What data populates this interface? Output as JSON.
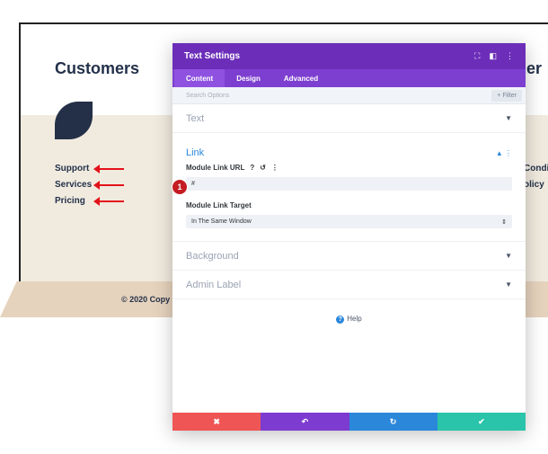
{
  "background_page": {
    "heading_left": "Customers",
    "heading_right": "er",
    "nav_links": [
      "Support",
      "Services",
      "Pricing"
    ],
    "right_links": [
      "Condit",
      "olicy"
    ],
    "copyright": "© 2020 Copy"
  },
  "modal": {
    "title": "Text Settings",
    "header_icons": [
      "expand-icon",
      "split-view-icon",
      "more-icon"
    ],
    "tabs": [
      {
        "label": "Content",
        "active": true
      },
      {
        "label": "Design",
        "active": false
      },
      {
        "label": "Advanced",
        "active": false
      }
    ],
    "search_placeholder": "Search Options",
    "filter_label": "+ Filter",
    "sections": {
      "text": "Text",
      "link": "Link",
      "background": "Background",
      "admin_label": "Admin Label"
    },
    "link": {
      "url_label": "Module Link URL",
      "url_value": "#",
      "target_label": "Module Link Target",
      "target_value": "In The Same Window"
    },
    "badge_number": "1",
    "help_label": "Help"
  },
  "colors": {
    "header_purple": "#6c2eb9",
    "tab_purple": "#7d3fd0",
    "cancel": "#ef5555",
    "undo": "#7e3bd0",
    "redo": "#2b87da",
    "save": "#29c4a9",
    "badge": "#c41c22",
    "arrow": "#e3121a"
  }
}
